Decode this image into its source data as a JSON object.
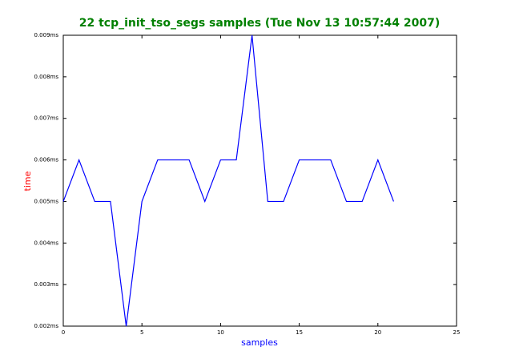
{
  "chart_data": {
    "type": "line",
    "title": "22 tcp_init_tso_segs samples (Tue Nov 13 10:57:44 2007)",
    "x_label": "samples",
    "y_label": "time",
    "x": [
      0,
      1,
      2,
      3,
      4,
      5,
      6,
      7,
      8,
      9,
      10,
      11,
      12,
      13,
      14,
      15,
      16,
      17,
      18,
      19,
      20,
      21
    ],
    "values": [
      0.005,
      0.006,
      0.005,
      0.005,
      0.002,
      0.005,
      0.006,
      0.006,
      0.006,
      0.005,
      0.006,
      0.006,
      0.009,
      0.005,
      0.005,
      0.006,
      0.006,
      0.006,
      0.005,
      0.005,
      0.006,
      0.005
    ],
    "color": "#0000ff",
    "xlim": [
      0,
      25
    ],
    "xticks": [
      0,
      5,
      10,
      15,
      20,
      25
    ],
    "ylim": [
      0.002,
      0.009
    ],
    "yticks": [
      {
        "value": 0.002,
        "label": "0.002ms"
      },
      {
        "value": 0.003,
        "label": "0.003ms"
      },
      {
        "value": 0.004,
        "label": "0.004ms"
      },
      {
        "value": 0.005,
        "label": "0.005ms"
      },
      {
        "value": 0.006,
        "label": "0.006ms"
      },
      {
        "value": 0.007,
        "label": "0.007ms"
      },
      {
        "value": 0.008,
        "label": "0.008ms"
      },
      {
        "value": 0.009,
        "label": "0.009ms"
      }
    ],
    "grid": false
  }
}
